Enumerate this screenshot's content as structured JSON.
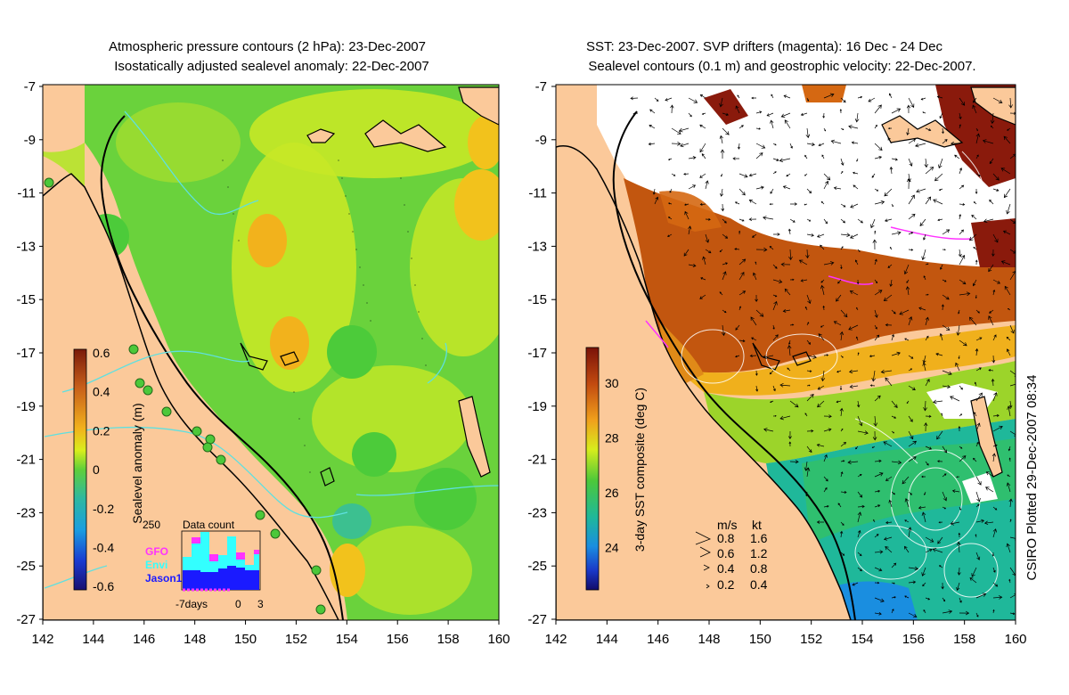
{
  "left_panel": {
    "title_line1": "Atmospheric pressure contours (2 hPa): 23-Dec-2007",
    "title_line2": "Isostatically adjusted sealevel anomaly: 22-Dec-2007",
    "colorbar_label": "Sealevel anomaly (m)",
    "colorbar_ticks": [
      "0.6",
      "0.4",
      "0.2",
      "0",
      "-0.2",
      "-0.4",
      "-0.6"
    ],
    "data_count": {
      "title": "Data count",
      "max_label": "250",
      "legend": [
        {
          "name": "GFO",
          "color": "#ff33ff"
        },
        {
          "name": "Envi",
          "color": "#33ffff"
        },
        {
          "name": "Jason1",
          "color": "#1a1aff"
        }
      ],
      "x_labels": [
        "-7days",
        "0",
        "3"
      ]
    }
  },
  "right_panel": {
    "title_line1": "SST: 23-Dec-2007. SVP drifters (magenta): 16 Dec - 24 Dec",
    "title_line2": "Sealevel contours (0.1 m) and geostrophic velocity: 22-Dec-2007.",
    "colorbar_label": "3-day SST composite (deg C)",
    "colorbar_ticks": [
      "30",
      "28",
      "26",
      "24"
    ],
    "velocity_legend": {
      "header_ms": "m/s",
      "header_kt": "kt",
      "rows": [
        {
          "ms": "0.8",
          "kt": "1.6"
        },
        {
          "ms": "0.6",
          "kt": "1.2"
        },
        {
          "ms": "0.4",
          "kt": "0.8"
        },
        {
          "ms": "0.2",
          "kt": "0.4"
        }
      ]
    }
  },
  "axes": {
    "lat_ticks": [
      "-7",
      "-9",
      "-11",
      "-13",
      "-15",
      "-17",
      "-19",
      "-21",
      "-23",
      "-25",
      "-27"
    ],
    "lon_ticks": [
      "142",
      "144",
      "146",
      "148",
      "150",
      "152",
      "154",
      "156",
      "158",
      "160"
    ]
  },
  "credit": "CSIRO Plotted 29-Dec-2007 08:34",
  "colors": {
    "land": "#fbc99a",
    "ocean_green": "#5ccf3a",
    "ocean_yellow": "#d4ec1e",
    "sst_warm": "#b8500c",
    "sst_cool": "#1fb88a",
    "cloud": "#ffffff"
  }
}
